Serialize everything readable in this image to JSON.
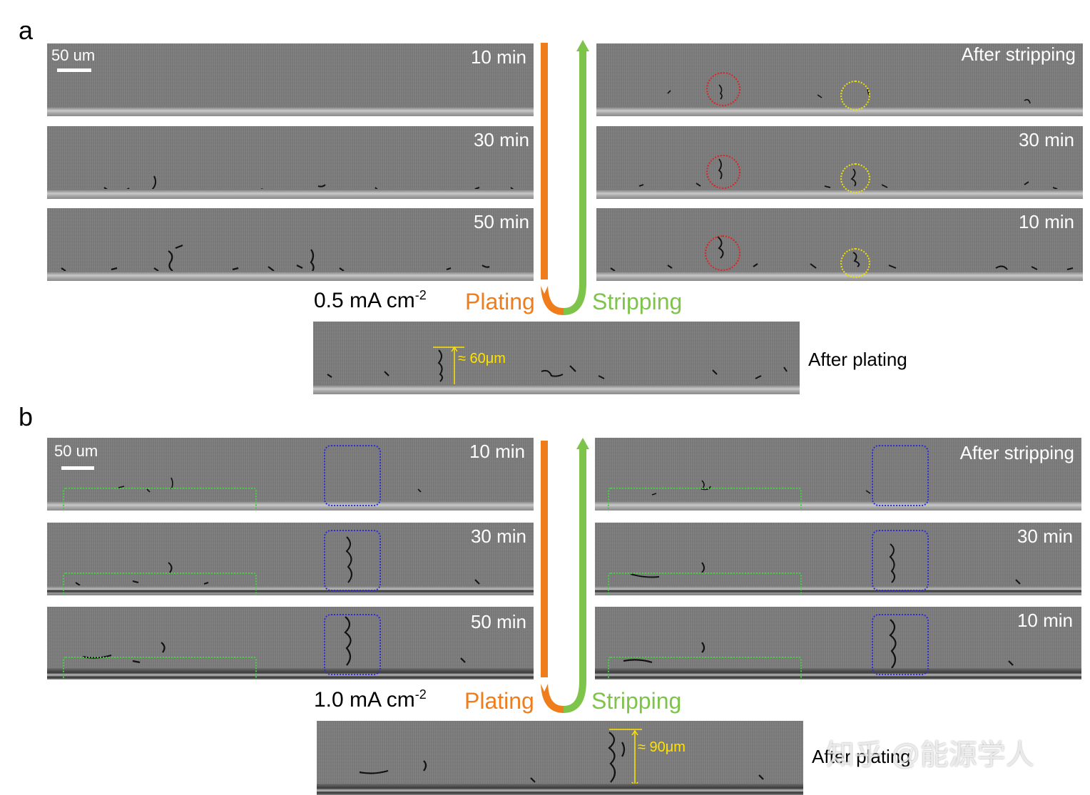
{
  "panel_a": {
    "letter": "a",
    "scale_label": "50 um",
    "plating_labels": [
      "10 min",
      "30 min",
      "50 min"
    ],
    "stripping_labels": [
      "After stripping",
      "30 min",
      "10 min"
    ],
    "current_density": "0.5 mA cm",
    "current_density_exp": "-2",
    "plating": "Plating",
    "stripping": "Stripping",
    "after_plating": "After plating",
    "measure": "≈ 60μm"
  },
  "panel_b": {
    "letter": "b",
    "scale_label": "50 um",
    "plating_labels": [
      "10 min",
      "30 min",
      "50 min"
    ],
    "stripping_labels": [
      "After stripping",
      "30 min",
      "10 min"
    ],
    "current_density": "1.0 mA cm",
    "current_density_exp": "-2",
    "plating": "Plating",
    "stripping": "Stripping",
    "after_plating": "After plating",
    "measure": "≈ 90μm"
  },
  "watermark": "知乎 @能源学人",
  "colors": {
    "plating_arrow": "#f07d1c",
    "stripping_arrow": "#7ec44a",
    "measure": "#ffe300",
    "circle_red": "#e02020",
    "circle_yellow": "#f2e400",
    "box_blue": "#2d2de0",
    "box_green": "#43d043"
  }
}
